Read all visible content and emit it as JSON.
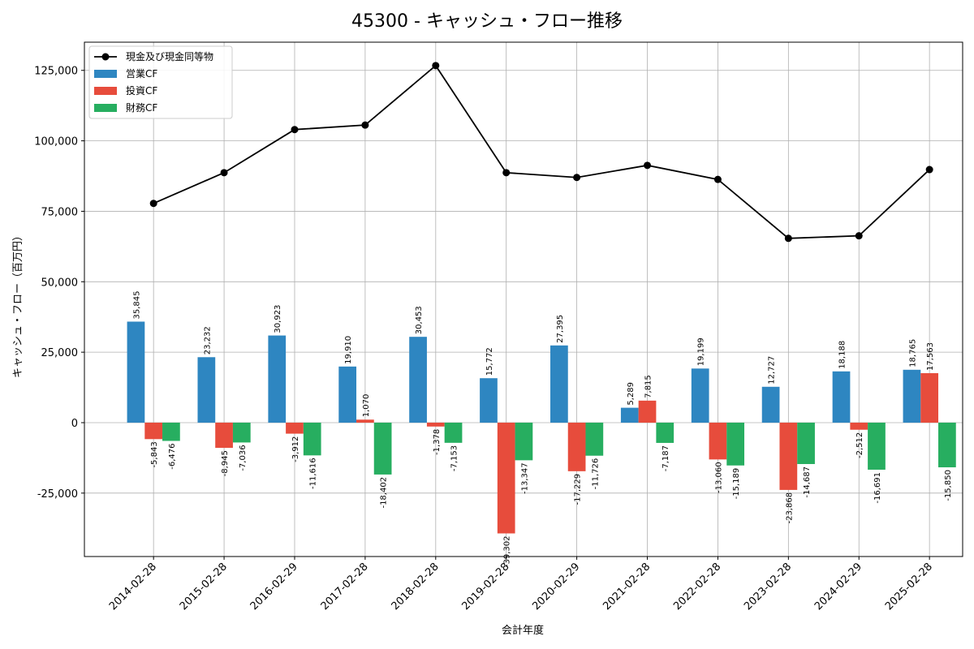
{
  "chart_data": {
    "type": "bar",
    "title": "45300 - キャッシュ・フロー推移",
    "xlabel": "会計年度",
    "ylabel": "キャッシュ・フロー（百万円）",
    "categories": [
      "2014-02-28",
      "2015-02-28",
      "2016-02-29",
      "2017-02-28",
      "2018-02-28",
      "2019-02-28",
      "2020-02-29",
      "2021-02-28",
      "2022-02-28",
      "2023-02-28",
      "2024-02-29",
      "2025-02-28"
    ],
    "ylim": [
      -47500,
      135000
    ],
    "yticks": [
      -25000,
      0,
      25000,
      50000,
      75000,
      100000,
      125000
    ],
    "ytick_labels": [
      "-25,000",
      "0",
      "25,000",
      "50,000",
      "75,000",
      "100,000",
      "125,000"
    ],
    "grid": true,
    "legend_position": "top-left",
    "series": [
      {
        "name": "現金及び現金同等物",
        "kind": "line",
        "color": "#000000",
        "values": [
          77800,
          88700,
          104000,
          105600,
          126700,
          88700,
          87000,
          91300,
          86300,
          65400,
          66300,
          89800
        ]
      },
      {
        "name": "営業CF",
        "kind": "bar",
        "color": "#2e86c1",
        "values": [
          35845,
          23232,
          30923,
          19910,
          30453,
          15772,
          27395,
          5289,
          19199,
          12727,
          18188,
          18765
        ],
        "labels": [
          "35,845",
          "23,232",
          "30,923",
          "19,910",
          "30,453",
          "15,772",
          "27,395",
          "5,289",
          "19,199",
          "12,727",
          "18,188",
          "18,765"
        ]
      },
      {
        "name": "投資CF",
        "kind": "bar",
        "color": "#e74c3c",
        "values": [
          -5843,
          -8945,
          -3912,
          1070,
          -1378,
          -39302,
          -17229,
          7815,
          -13060,
          -23868,
          -2512,
          17563
        ],
        "labels": [
          "-5,843",
          "-8,945",
          "-3,912",
          "1,070",
          "-1,378",
          "-39,302",
          "-17,229",
          "7,815",
          "-13,060",
          "-23,868",
          "-2,512",
          "17,563"
        ]
      },
      {
        "name": "財務CF",
        "kind": "bar",
        "color": "#27ae60",
        "values": [
          -6476,
          -7036,
          -11616,
          -18402,
          -7153,
          -13347,
          -11726,
          -7187,
          -15189,
          -14687,
          -16691,
          -15850
        ],
        "labels": [
          "-6,476",
          "-7,036",
          "-11,616",
          "-18,402",
          "-7,153",
          "-13,347",
          "-11,726",
          "-7,187",
          "-15,189",
          "-14,687",
          "-16,691",
          "-15,850"
        ]
      }
    ]
  }
}
